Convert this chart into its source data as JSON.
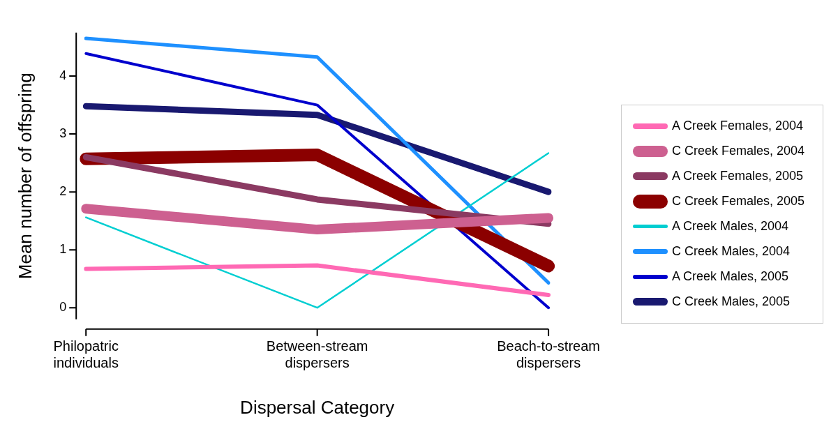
{
  "chart_data": {
    "type": "line",
    "xlabel": "Dispersal Category",
    "ylabel": "Mean number of offspring",
    "categories": [
      "Philopatric individuals",
      "Between-stream dispersers",
      "Beach-to-stream dispersers"
    ],
    "ylim": [
      -0.2,
      4.75
    ],
    "yticks": [
      0,
      1,
      2,
      3,
      4
    ],
    "grid": false,
    "legend": "right",
    "marker": "none",
    "line_style": "solid",
    "series": [
      {
        "name": "A Creek Females, 2004",
        "color": "#ff69b4",
        "values": [
          0.67,
          0.73,
          0.22
        ]
      },
      {
        "name": "C Creek Females, 2004",
        "color": "#cd6090",
        "values": [
          1.71,
          1.35,
          1.55
        ]
      },
      {
        "name": "A Creek Females, 2005",
        "color": "#8b3a62",
        "values": [
          2.6,
          1.87,
          1.45
        ]
      },
      {
        "name": "C Creek Females, 2005",
        "color": "#8b0000",
        "values": [
          2.57,
          2.64,
          0.72
        ]
      },
      {
        "name": "A Creek Males, 2004",
        "color": "#00ced1",
        "values": [
          1.56,
          0,
          2.67
        ]
      },
      {
        "name": "C Creek Males, 2004",
        "color": "#1e90ff",
        "values": [
          4.65,
          4.33,
          0.43
        ]
      },
      {
        "name": "A Creek Males, 2005",
        "color": "#0000cd",
        "values": [
          4.39,
          3.5,
          0
        ]
      },
      {
        "name": "C Creek Males, 2005",
        "color": "#191970",
        "values": [
          3.48,
          3.33,
          2.0
        ]
      }
    ]
  }
}
